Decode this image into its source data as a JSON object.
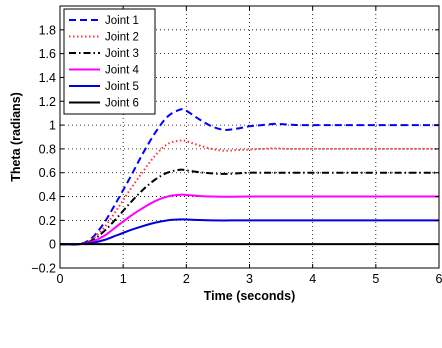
{
  "chart_data": {
    "type": "line",
    "xlabel": "Time (seconds)",
    "ylabel": "Theta (radians)",
    "xlim": [
      0,
      6
    ],
    "ylim": [
      -0.2,
      2.0
    ],
    "xticks": [
      0,
      1,
      2,
      3,
      4,
      5,
      6
    ],
    "yticks": [
      -0.2,
      0,
      0.2,
      0.4,
      0.6,
      0.8,
      1,
      1.2,
      1.4,
      1.6,
      1.8
    ],
    "xtick_labels": [
      "0",
      "1",
      "2",
      "3",
      "4",
      "5",
      "6"
    ],
    "ytick_labels": [
      "−0.2",
      "0",
      "0.2",
      "0.4",
      "0.6",
      "0.8",
      "1",
      "1.2",
      "1.4",
      "1.6",
      "1.8"
    ],
    "grid": true,
    "legend_position": "top-left",
    "series": [
      {
        "name": "Joint 1",
        "color": "#0000ff",
        "style": "dashed",
        "x": [
          0,
          0.3,
          0.5,
          0.7,
          0.9,
          1.1,
          1.3,
          1.5,
          1.7,
          1.9,
          2.0,
          2.2,
          2.4,
          2.6,
          2.8,
          3.0,
          3.2,
          3.4,
          3.6,
          3.8,
          4.0,
          5.0,
          6.0
        ],
        "y": [
          0,
          0,
          0.05,
          0.18,
          0.36,
          0.55,
          0.75,
          0.93,
          1.07,
          1.13,
          1.12,
          1.05,
          0.99,
          0.96,
          0.97,
          0.99,
          1.0,
          1.01,
          1.005,
          1.0,
          1.0,
          1.0,
          1.0
        ]
      },
      {
        "name": "Joint 2",
        "color": "#ff3333",
        "style": "dotted",
        "x": [
          0,
          0.3,
          0.5,
          0.7,
          0.9,
          1.1,
          1.3,
          1.5,
          1.7,
          1.9,
          2.0,
          2.2,
          2.4,
          2.6,
          2.8,
          3.0,
          3.2,
          3.4,
          3.6,
          3.8,
          4.0,
          5.0,
          6.0
        ],
        "y": [
          0,
          0,
          0.04,
          0.14,
          0.29,
          0.45,
          0.6,
          0.74,
          0.84,
          0.87,
          0.865,
          0.83,
          0.8,
          0.785,
          0.79,
          0.795,
          0.8,
          0.805,
          0.8,
          0.8,
          0.8,
          0.8,
          0.8
        ]
      },
      {
        "name": "Joint 3",
        "color": "#000000",
        "style": "dashdot",
        "x": [
          0,
          0.3,
          0.5,
          0.7,
          0.9,
          1.1,
          1.3,
          1.5,
          1.7,
          1.9,
          2.0,
          2.2,
          2.4,
          2.6,
          2.8,
          3.0,
          3.2,
          3.4,
          3.6,
          3.8,
          4.0,
          5.0,
          6.0
        ],
        "y": [
          0,
          0,
          0.03,
          0.11,
          0.22,
          0.34,
          0.45,
          0.54,
          0.6,
          0.625,
          0.62,
          0.605,
          0.595,
          0.59,
          0.595,
          0.6,
          0.6,
          0.6,
          0.6,
          0.6,
          0.6,
          0.6,
          0.6
        ]
      },
      {
        "name": "Joint 4",
        "color": "#ff00ff",
        "style": "solid",
        "x": [
          0,
          0.3,
          0.5,
          0.7,
          0.9,
          1.1,
          1.3,
          1.5,
          1.7,
          1.9,
          2.0,
          2.2,
          2.4,
          2.6,
          2.8,
          3.0,
          3.2,
          3.4,
          3.6,
          3.8,
          4.0,
          5.0,
          6.0
        ],
        "y": [
          0,
          0,
          0.02,
          0.07,
          0.15,
          0.23,
          0.3,
          0.36,
          0.4,
          0.415,
          0.413,
          0.405,
          0.4,
          0.398,
          0.399,
          0.4,
          0.4,
          0.4,
          0.4,
          0.4,
          0.4,
          0.4,
          0.4
        ]
      },
      {
        "name": "Joint 5",
        "color": "#0000dd",
        "style": "solid",
        "x": [
          0,
          0.3,
          0.5,
          0.7,
          0.9,
          1.1,
          1.3,
          1.5,
          1.7,
          1.9,
          2.0,
          2.2,
          2.4,
          2.6,
          2.8,
          3.0,
          3.2,
          3.4,
          3.6,
          3.8,
          4.0,
          5.0,
          6.0
        ],
        "y": [
          0,
          0,
          0.01,
          0.035,
          0.075,
          0.115,
          0.15,
          0.18,
          0.2,
          0.208,
          0.207,
          0.203,
          0.2,
          0.199,
          0.2,
          0.2,
          0.2,
          0.2,
          0.2,
          0.2,
          0.2,
          0.2,
          0.2
        ]
      },
      {
        "name": "Joint 6",
        "color": "#000000",
        "style": "solid",
        "x": [
          0,
          6
        ],
        "y": [
          0,
          0
        ]
      }
    ]
  }
}
